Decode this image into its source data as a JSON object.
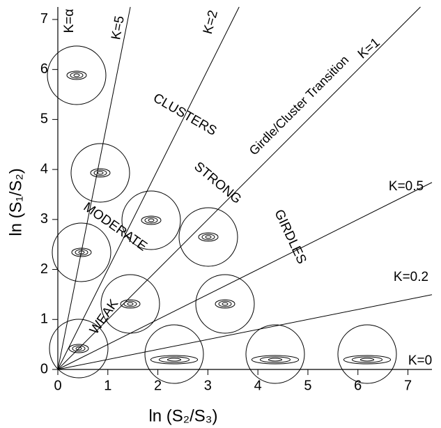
{
  "chart_data": {
    "type": "woodcock",
    "x_label": "ln (S₂/S₃)",
    "y_label": "ln (S₁/S₂)",
    "xlim": [
      0,
      7.48
    ],
    "ylim": [
      0,
      7.25
    ],
    "xticks": [
      0,
      1,
      2,
      3,
      4,
      5,
      6,
      7
    ],
    "yticks": [
      0,
      1,
      2,
      3,
      4,
      5,
      6,
      7
    ],
    "lines": [
      {
        "label": "K=α",
        "k": null
      },
      {
        "label": "K=5",
        "k": 5
      },
      {
        "label": "K=2",
        "k": 2
      },
      {
        "label": "K=1",
        "k": 1
      },
      {
        "label": "K=0.5",
        "k": 0.5
      },
      {
        "label": "K=0.2",
        "k": 0.2
      },
      {
        "label": "K=0",
        "k": 0
      }
    ],
    "annotations": [
      "CLUSTERS",
      "STRONG",
      "MODERATE",
      "WEAK",
      "GIRDLES",
      "Girdle/Cluster Transition"
    ],
    "color": "#000000"
  }
}
